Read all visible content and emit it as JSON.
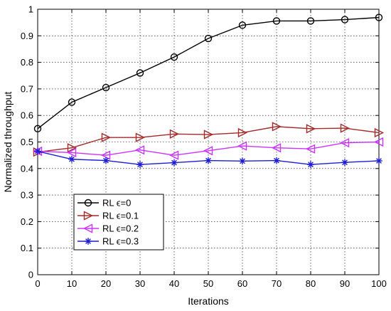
{
  "chart_data": {
    "type": "line",
    "title": "",
    "xlabel": "Iterations",
    "ylabel": "Normalized throughput",
    "xlim": [
      0,
      100
    ],
    "ylim": [
      0,
      1
    ],
    "x": [
      0,
      10,
      20,
      30,
      40,
      50,
      60,
      70,
      80,
      90,
      100
    ],
    "xticks": [
      "0",
      "10",
      "20",
      "30",
      "40",
      "50",
      "60",
      "70",
      "80",
      "90",
      "100"
    ],
    "yticks": [
      "0",
      "0.1",
      "0.2",
      "0.3",
      "0.4",
      "0.5",
      "0.6",
      "0.7",
      "0.8",
      "0.9",
      "1"
    ],
    "grid": true,
    "legend_position": "lower-left",
    "series": [
      {
        "name": "RL ϵ=0",
        "color": "#000000",
        "marker": "circle",
        "values": [
          0.55,
          0.65,
          0.705,
          0.76,
          0.82,
          0.89,
          0.94,
          0.956,
          0.956,
          0.961,
          0.969
        ]
      },
      {
        "name": "RL ϵ=0.1",
        "color": "#a52a2a",
        "marker": "triangle-right",
        "values": [
          0.462,
          0.478,
          0.517,
          0.517,
          0.53,
          0.528,
          0.535,
          0.558,
          0.55,
          0.552,
          0.535
        ]
      },
      {
        "name": "RL ϵ=0.2",
        "color": "#cc33ff",
        "marker": "triangle-left",
        "values": [
          0.465,
          0.46,
          0.45,
          0.47,
          0.45,
          0.467,
          0.485,
          0.478,
          0.474,
          0.497,
          0.5
        ]
      },
      {
        "name": "RL ϵ=0.3",
        "color": "#1c1cd6",
        "marker": "asterisk",
        "values": [
          0.465,
          0.435,
          0.43,
          0.415,
          0.422,
          0.43,
          0.428,
          0.43,
          0.415,
          0.423,
          0.429
        ]
      }
    ]
  }
}
